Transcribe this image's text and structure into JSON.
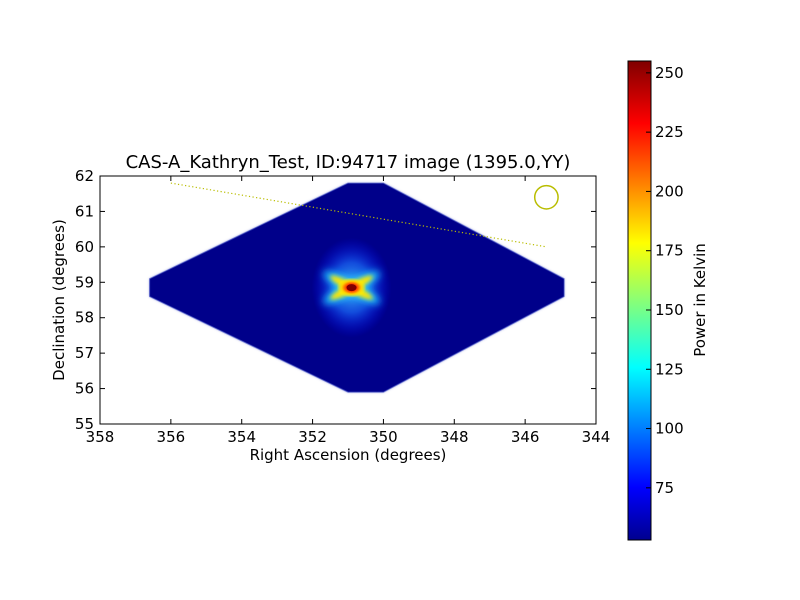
{
  "chart_data": {
    "type": "heatmap",
    "title": "CAS-A_Kathryn_Test, ID:94717 image (1395.0,YY)",
    "xlabel": "Right Ascension (degrees)",
    "ylabel": "Declination (degrees)",
    "xlim": [
      358,
      344
    ],
    "ylim": [
      55,
      62
    ],
    "x_ticks": [
      "358",
      "356",
      "354",
      "352",
      "350",
      "348",
      "346",
      "344"
    ],
    "y_ticks": [
      "55",
      "56",
      "57",
      "58",
      "59",
      "60",
      "61",
      "62"
    ],
    "colorbar": {
      "label": "Power in Kelvin",
      "range": [
        53,
        255
      ],
      "ticks": [
        "75",
        "100",
        "125",
        "150",
        "175",
        "200",
        "225",
        "250"
      ],
      "colormap": "jet"
    },
    "footprint": {
      "shape": "octagon",
      "vertices_ra_dec": [
        [
          356.6,
          59.1
        ],
        [
          356.6,
          58.6
        ],
        [
          351.0,
          55.9
        ],
        [
          350.0,
          55.9
        ],
        [
          344.9,
          58.6
        ],
        [
          344.9,
          59.1
        ],
        [
          350.0,
          61.8
        ],
        [
          351.0,
          61.8
        ]
      ],
      "background_value": 55
    },
    "source": {
      "ra": 350.9,
      "dec": 58.85,
      "peak_value": 255,
      "pattern": "cross"
    },
    "annotations": {
      "dotted_line": {
        "from": [
          356.0,
          61.8
        ],
        "to": [
          345.4,
          60.0
        ],
        "color": "#b9bd00"
      },
      "circle": {
        "ra": 345.4,
        "dec": 61.4,
        "radius_deg": 0.33,
        "color": "#b9bd00"
      }
    }
  }
}
